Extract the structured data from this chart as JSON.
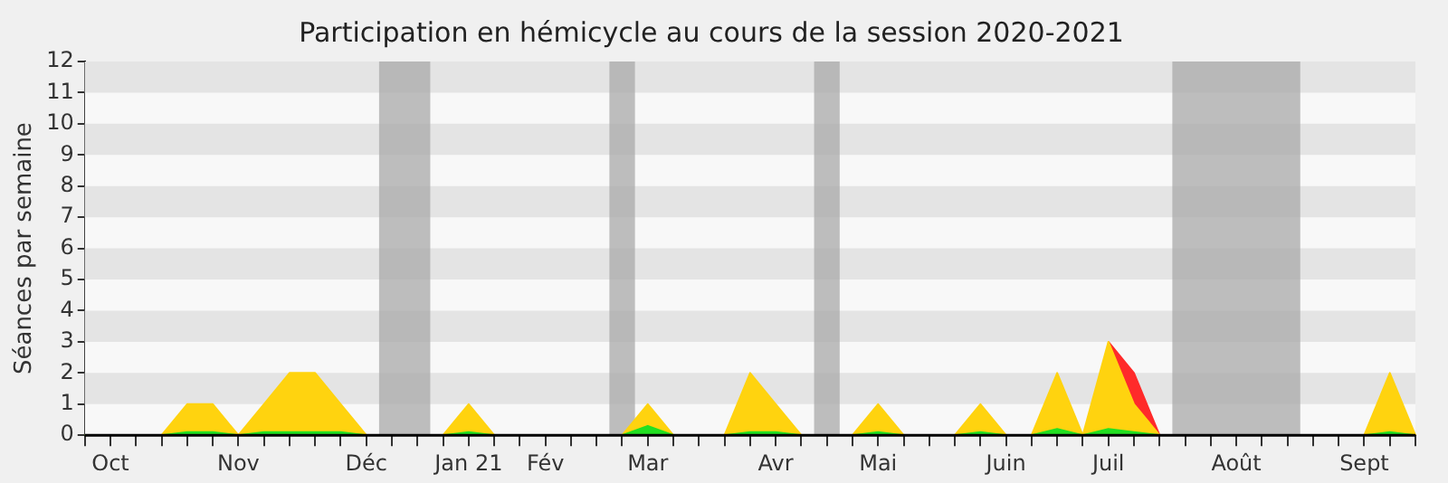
{
  "chart_data": {
    "type": "area",
    "stacked": true,
    "title": "Participation en hémicycle au cours de la session 2020-2021",
    "ylabel": "Séances par semaine",
    "categories": [
      null,
      "Oct",
      null,
      null,
      null,
      null,
      "Nov",
      null,
      null,
      null,
      null,
      "Déc",
      null,
      null,
      null,
      "Jan 21",
      null,
      null,
      "Fév",
      null,
      null,
      null,
      "Mar",
      null,
      null,
      null,
      null,
      "Avr",
      null,
      null,
      null,
      "Mai",
      null,
      null,
      null,
      null,
      "Juin",
      null,
      null,
      null,
      "Juil",
      null,
      null,
      null,
      null,
      "Août",
      null,
      null,
      null,
      null,
      "Sept",
      null,
      null
    ],
    "series": [
      {
        "color": "#22e022",
        "values": [
          0,
          0,
          0,
          0,
          0.1,
          0.1,
          0,
          0.1,
          0.1,
          0.1,
          0.1,
          0,
          0,
          0,
          0,
          0.1,
          0,
          0,
          0,
          0,
          0,
          0,
          0.3,
          0,
          0,
          0,
          0.1,
          0.1,
          0,
          0,
          0,
          0.1,
          0,
          0,
          0,
          0.1,
          0,
          0,
          0.2,
          0,
          0.2,
          0.1,
          0,
          0,
          0,
          0,
          0,
          0,
          0,
          0,
          0,
          0.1,
          0
        ]
      },
      {
        "color": "#ffd30f",
        "values": [
          0,
          0,
          0,
          0,
          0.9,
          0.9,
          0,
          0.9,
          1.9,
          1.9,
          0.9,
          0,
          0,
          0,
          0,
          0.9,
          0,
          0,
          0,
          0,
          0,
          0,
          0.7,
          0,
          0,
          0,
          1.9,
          0.9,
          0,
          0,
          0,
          0.9,
          0,
          0,
          0,
          0.9,
          0,
          0,
          1.8,
          0,
          2.8,
          0.9,
          0,
          0,
          0,
          0,
          0,
          0,
          0,
          0,
          0,
          1.9,
          0
        ]
      },
      {
        "color": "#ff2a2a",
        "values": [
          null,
          null,
          null,
          null,
          null,
          null,
          null,
          null,
          null,
          null,
          null,
          null,
          null,
          null,
          null,
          null,
          null,
          null,
          null,
          null,
          null,
          null,
          null,
          null,
          null,
          null,
          null,
          null,
          null,
          null,
          null,
          null,
          null,
          null,
          null,
          null,
          null,
          null,
          null,
          null,
          0,
          1,
          0,
          null,
          null,
          null,
          null,
          null,
          null,
          null,
          null,
          null,
          null
        ]
      }
    ],
    "ylim": [
      0,
      12
    ],
    "yticks": [
      0,
      1,
      2,
      3,
      4,
      5,
      6,
      7,
      8,
      9,
      10,
      11,
      12
    ],
    "legend": false
  }
}
